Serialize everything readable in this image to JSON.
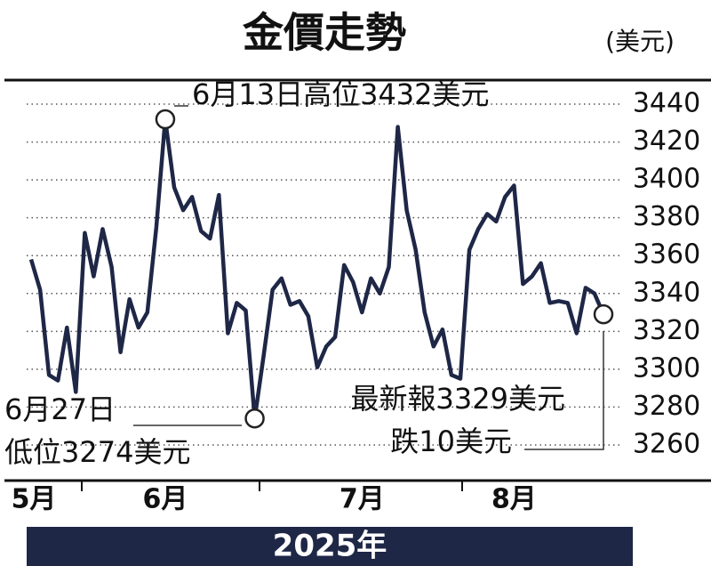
{
  "chart_data": {
    "type": "line",
    "title": "金價走勢",
    "unit": "(美元)",
    "footer": "2025年",
    "categories": [
      "5月",
      null,
      null,
      null,
      null,
      null,
      null,
      null,
      null,
      null,
      null,
      null,
      null,
      null,
      null,
      "6月",
      null,
      null,
      null,
      null,
      null,
      null,
      null,
      null,
      null,
      null,
      null,
      null,
      null,
      null,
      null,
      null,
      null,
      null,
      null,
      null,
      null,
      "7月",
      null,
      null,
      null,
      null,
      null,
      null,
      null,
      null,
      null,
      null,
      null,
      null,
      null,
      null,
      null,
      null,
      "8月",
      null,
      null,
      null,
      null,
      null,
      null,
      null,
      null,
      null,
      null
    ],
    "values": [
      3358,
      3342,
      3297,
      3294,
      3322,
      3288,
      3372,
      3349,
      3374,
      3354,
      3309,
      3337,
      3322,
      3330,
      3375,
      3432,
      3396,
      3384,
      3391,
      3373,
      3369,
      3392,
      3319,
      3335,
      3331,
      3274,
      3307,
      3342,
      3348,
      3334,
      3336,
      3328,
      3301,
      3312,
      3317,
      3355,
      3346,
      3330,
      3348,
      3340,
      3354,
      3428,
      3384,
      3363,
      3330,
      3312,
      3321,
      3297,
      3295,
      3363,
      3374,
      3382,
      3378,
      3391,
      3397,
      3345,
      3349,
      3356,
      3335,
      3336,
      3335,
      3319,
      3343,
      3340,
      3329
    ],
    "color": "#1f2747",
    "ylim": [
      3250,
      3450
    ],
    "yticks": [
      3260,
      3280,
      3300,
      3320,
      3340,
      3360,
      3380,
      3400,
      3420,
      3440
    ],
    "grid": true,
    "annotations": [
      "6月13日高位3432美元",
      "6月27日",
      "低位3274美元",
      "最新報3329美元",
      "跌10美元"
    ]
  }
}
